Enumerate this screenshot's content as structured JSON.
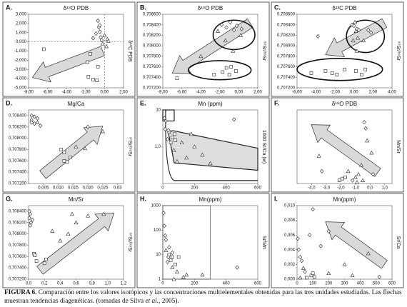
{
  "chart_data": [
    {
      "type": "scatter",
      "letter": "A.",
      "title": "δ¹⁸O PDB",
      "ylabel": "δ¹³C PDB",
      "xlim": [
        -8,
        2
      ],
      "ylim": [
        -5,
        3
      ],
      "xticks": [
        {
          "value": -8,
          "label": "-8,00"
        },
        {
          "value": -6,
          "label": "-6,00"
        },
        {
          "value": -4,
          "label": "-4,00"
        },
        {
          "value": -2,
          "label": "-2,00"
        },
        {
          "value": 0,
          "label": "0,00"
        },
        {
          "value": 2,
          "label": "2,00"
        }
      ],
      "yticks": [
        {
          "value": 3,
          "label": "3,000"
        },
        {
          "value": 2,
          "label": "2,000"
        },
        {
          "value": 1,
          "label": "1,000"
        },
        {
          "value": 0,
          "label": "0,000"
        },
        {
          "value": -1,
          "label": "-1,000"
        },
        {
          "value": -2,
          "label": "-2,000"
        },
        {
          "value": -3,
          "label": "-3,000"
        },
        {
          "value": -4,
          "label": "-4,000"
        },
        {
          "value": -5,
          "label": "-5,000"
        }
      ],
      "series": [
        {
          "marker": "square",
          "color": "#222222",
          "x": [
            -6.4,
            -1.8,
            -1.7,
            -1.2,
            -0.8,
            -0.7,
            -1.5
          ],
          "values": [
            -0.8,
            -2.2,
            -3.8,
            -4.1,
            -4.2,
            -2.7,
            -1.3
          ]
        },
        {
          "marker": "diamond",
          "color": "#222222",
          "x": [
            -0.6,
            -0.5,
            -1.2,
            -0.3,
            -0.5,
            -0.7,
            -0.9,
            -0.4
          ],
          "values": [
            1.6,
            1.1,
            0.4,
            0.2,
            1.8,
            2.3,
            0.9,
            0.5
          ]
        },
        {
          "marker": "triangle",
          "color": "#222222",
          "x": [
            0,
            0.3,
            0.2,
            -0.2,
            0.4
          ],
          "values": [
            0.7,
            0.3,
            -0.5,
            -0.2,
            0.1
          ]
        }
      ]
    },
    {
      "type": "scatter",
      "letter": "B.",
      "title": "δ¹⁸O PDB",
      "ylabel": "⁸⁷Sr/⁸⁶Sr",
      "xlim": [
        -8,
        2
      ],
      "ylim": [
        0.7072,
        0.7086
      ],
      "xticks": [
        {
          "value": -8,
          "label": "-8,00"
        },
        {
          "value": -6,
          "label": "-6,00"
        },
        {
          "value": -4,
          "label": "-4,00"
        },
        {
          "value": -2,
          "label": "-2,00"
        },
        {
          "value": 0,
          "label": "0,00"
        },
        {
          "value": 2,
          "label": "2,00"
        }
      ],
      "yticks": [
        {
          "value": 0.7086,
          "label": "0,708600"
        },
        {
          "value": 0.7084,
          "label": "0,708400"
        },
        {
          "value": 0.7082,
          "label": "0,708200"
        },
        {
          "value": 0.708,
          "label": "0,708000"
        },
        {
          "value": 0.7078,
          "label": "0,707800"
        },
        {
          "value": 0.7076,
          "label": "0,707600"
        },
        {
          "value": 0.7074,
          "label": "0,707400"
        },
        {
          "value": 0.7072,
          "label": "0,707200"
        }
      ],
      "series": [
        {
          "marker": "square",
          "color": "#222222",
          "x": [
            -6.5,
            -2.6,
            -1.7,
            -1.3,
            -0.8,
            -0.3,
            -1.0
          ],
          "values": [
            0.70738,
            0.70745,
            0.7075,
            0.70758,
            0.7076,
            0.70752,
            0.70745
          ]
        },
        {
          "marker": "diamond",
          "color": "#222222",
          "x": [
            -1.8,
            -1.3,
            -0.9,
            -0.5,
            -0.2,
            0.3
          ],
          "values": [
            0.7084,
            0.70835,
            0.70845,
            0.7083,
            0.70838,
            0.70832
          ]
        },
        {
          "marker": "triangle",
          "color": "#222222",
          "x": [
            -2.2,
            -1.4,
            -4.0,
            0.2,
            -0.6
          ],
          "values": [
            0.70828,
            0.7081,
            0.7078,
            0.7082,
            0.7079
          ]
        }
      ]
    },
    {
      "type": "scatter",
      "letter": "C.",
      "title": "δ¹³C PDB",
      "ylabel": "⁸⁷Sr/⁸⁶Sr",
      "xlim": [
        -6,
        4
      ],
      "ylim": [
        0.7072,
        0.7086
      ],
      "xticks": [
        {
          "value": -6,
          "label": "-6,00"
        },
        {
          "value": -4,
          "label": "-4,00"
        },
        {
          "value": -2,
          "label": "-2,00"
        },
        {
          "value": 0,
          "label": "0,00"
        },
        {
          "value": 2,
          "label": "2,00"
        },
        {
          "value": 4,
          "label": "4,00"
        }
      ],
      "yticks": [
        {
          "value": 0.7086,
          "label": "0,708600"
        },
        {
          "value": 0.7084,
          "label": "0,708400"
        },
        {
          "value": 0.7082,
          "label": "0,708200"
        },
        {
          "value": 0.708,
          "label": "0,708000"
        },
        {
          "value": 0.7078,
          "label": "0,707800"
        },
        {
          "value": 0.7076,
          "label": "0,707600"
        },
        {
          "value": 0.7074,
          "label": "0,707400"
        },
        {
          "value": 0.7072,
          "label": "0,707200"
        }
      ],
      "series": [
        {
          "marker": "square",
          "color": "#222222",
          "x": [
            -4.5,
            -3,
            -2.3,
            -1.8,
            -1,
            0.2,
            0.8,
            1.2
          ],
          "values": [
            0.70748,
            0.70752,
            0.70748,
            0.70745,
            0.70755,
            0.70752,
            0.70745,
            0.70755
          ]
        },
        {
          "marker": "diamond",
          "color": "#222222",
          "x": [
            -0.2,
            0,
            0.3,
            0.5,
            1.5,
            1.8,
            -3.8
          ],
          "values": [
            0.7084,
            0.70838,
            0.70832,
            0.7083,
            0.7083,
            0.70825,
            0.70818
          ]
        },
        {
          "marker": "triangle",
          "color": "#222222",
          "x": [
            0.1,
            0.2,
            0.4,
            -0.1,
            0.3,
            1.0
          ],
          "values": [
            0.70845,
            0.70828,
            0.70815,
            0.7081,
            0.7079,
            0.7081
          ]
        }
      ]
    },
    {
      "type": "scatter",
      "letter": "D.",
      "title": "Mg/Ca",
      "ylabel": "⁸⁷Sr/⁸⁶Sr",
      "xlim": [
        0,
        0.032
      ],
      "ylim": [
        0.7072,
        0.7085
      ],
      "xticks": [
        {
          "value": 0.005,
          "label": "0,005"
        },
        {
          "value": 0.01,
          "label": "0,010"
        },
        {
          "value": 0.015,
          "label": "0,015"
        },
        {
          "value": 0.02,
          "label": "0,020"
        },
        {
          "value": 0.025,
          "label": "0,025"
        },
        {
          "value": 0.03,
          "label": "0,03"
        }
      ],
      "yticks": [
        {
          "value": 0.7084,
          "label": "0,708400"
        },
        {
          "value": 0.7082,
          "label": "0,708200"
        },
        {
          "value": 0.708,
          "label": "0,708000"
        },
        {
          "value": 0.7078,
          "label": "0,707800"
        },
        {
          "value": 0.7076,
          "label": "0,707600"
        },
        {
          "value": 0.7074,
          "label": "0,707400"
        },
        {
          "value": 0.7072,
          "label": "0,707200"
        }
      ],
      "series": [
        {
          "marker": "diamond",
          "color": "#222222",
          "x": [
            0.001,
            0.002,
            0.001,
            0.003,
            0.002,
            0.004,
            0.001,
            0.02
          ],
          "values": [
            0.7084,
            0.70838,
            0.70832,
            0.70835,
            0.70826,
            0.70822,
            0.70828,
            0.7082
          ]
        },
        {
          "marker": "square",
          "color": "#222222",
          "x": [
            0.011,
            0.012,
            0.012,
            0.013,
            0.014
          ],
          "values": [
            0.7078,
            0.70775,
            0.7076,
            0.70758,
            0.70766
          ]
        },
        {
          "marker": "triangle",
          "color": "#222222",
          "x": [
            0.003,
            0.016,
            0.025,
            0.019
          ],
          "values": [
            0.70828,
            0.70785,
            0.70812,
            0.70782
          ]
        }
      ]
    },
    {
      "type": "scatter",
      "letter": "E.",
      "title": "Mn (ppm)",
      "ylabel": "1000 Sr/Ca (w)",
      "log_y": true,
      "xlim": [
        0,
        600
      ],
      "ylim": [
        0.1,
        10
      ],
      "xticks": [
        0,
        200,
        400,
        600
      ],
      "yticks": [
        10,
        {
          "value": 1,
          "label": "1,0"
        }
      ],
      "series": [
        {
          "marker": "square",
          "color": "#222222",
          "x": [
            40,
            60,
            75,
            50,
            80
          ],
          "values": [
            2.5,
            1.8,
            2.2,
            1.3,
            1.5
          ]
        },
        {
          "marker": "diamond",
          "color": "#222222",
          "x": [
            10,
            15,
            20,
            30,
            450,
            35
          ],
          "values": [
            6,
            3,
            5,
            1.6,
            5.5,
            2.8
          ]
        },
        {
          "marker": "triangle",
          "color": "#222222",
          "x": [
            70,
            150,
            200,
            250,
            300,
            120,
            180,
            90
          ],
          "values": [
            0.8,
            0.5,
            1.0,
            0.6,
            0.35,
            1.3,
            2.2,
            0.4
          ]
        }
      ]
    },
    {
      "type": "scatter",
      "letter": "F.",
      "title": "δ¹⁸O PDB",
      "ylabel": "Mn/Sr",
      "xlim": [
        -5,
        1.5
      ],
      "ylim": [
        0,
        1.2
      ],
      "xticks": [
        {
          "value": -4,
          "label": "-4,0"
        },
        {
          "value": -3,
          "label": "-3,0"
        },
        {
          "value": -2,
          "label": "-2,0"
        },
        {
          "value": -1,
          "label": "-1,0"
        },
        {
          "value": 0,
          "label": "0,0"
        },
        {
          "value": 1,
          "label": "1,0"
        }
      ],
      "yticks": [],
      "series": [
        {
          "marker": "triangle",
          "color": "#222222",
          "x": [
            -1.5,
            -1.0,
            -0.8,
            -0.5,
            -0.6,
            0.1,
            -0.2,
            -3.5,
            -0.9
          ],
          "values": [
            0.2,
            0.1,
            0.15,
            0.05,
            0.3,
            0.5,
            0.7,
            0.45,
            0.02
          ]
        },
        {
          "marker": "diamond",
          "color": "#222222",
          "x": [
            -3.3,
            -0.3,
            0.2,
            -1.2,
            -0.4
          ],
          "values": [
            0.2,
            0.9,
            0.15,
            0.05,
            1.0
          ]
        },
        {
          "marker": "square",
          "color": "#222222",
          "x": [
            -1.9,
            -1.7,
            -2.1
          ],
          "values": [
            0.08,
            0.1,
            0.05
          ]
        }
      ]
    },
    {
      "type": "scatter",
      "letter": "G.",
      "title": "Mn/Sr",
      "ylabel": "⁸⁷Sr/⁸⁶Sr",
      "xlim": [
        0,
        1.2
      ],
      "ylim": [
        0.7072,
        0.7085
      ],
      "xticks": [
        {
          "value": 0,
          "label": "0,0"
        },
        {
          "value": 0.2,
          "label": "0,2"
        },
        {
          "value": 0.4,
          "label": "0,4"
        },
        {
          "value": 0.6,
          "label": "0,6"
        },
        {
          "value": 0.8,
          "label": "0,8"
        },
        {
          "value": 1,
          "label": "1,0"
        },
        {
          "value": 1.2,
          "label": "1,2"
        }
      ],
      "yticks": [
        {
          "value": 0.7084,
          "label": "0,708400"
        },
        {
          "value": 0.7082,
          "label": "0,708200"
        },
        {
          "value": 0.708,
          "label": "0,708000"
        },
        {
          "value": 0.7078,
          "label": "0,707800"
        },
        {
          "value": 0.7076,
          "label": "0,707600"
        },
        {
          "value": 0.7074,
          "label": "0,707400"
        },
        {
          "value": 0.7072,
          "label": "0,707200"
        }
      ],
      "series": [
        {
          "marker": "diamond",
          "color": "#222222",
          "x": [
            0.01,
            0.02,
            0.01,
            0.03,
            0.02,
            0.05
          ],
          "values": [
            0.7084,
            0.70835,
            0.70828,
            0.7082,
            0.70815,
            0.70825
          ]
        },
        {
          "marker": "square",
          "color": "#222222",
          "x": [
            0.07,
            0.08,
            0.1,
            0.2,
            0.22
          ],
          "values": [
            0.70765,
            0.70762,
            0.70752,
            0.70748,
            0.70755
          ]
        },
        {
          "marker": "triangle",
          "color": "#222222",
          "x": [
            0.4,
            0.55,
            0.6,
            0.75,
            0.95,
            0.5,
            0.3
          ],
          "values": [
            0.70788,
            0.70835,
            0.7082,
            0.70832,
            0.70835,
            0.708,
            0.70805
          ]
        }
      ]
    },
    {
      "type": "scatter",
      "letter": "H.",
      "title": "Mn(ppm)",
      "ylabel": "Sr/Mn",
      "log_y": true,
      "xlim": [
        0,
        600
      ],
      "ylim": [
        1,
        1000
      ],
      "xticks": [
        0,
        200,
        400,
        600
      ],
      "yticks": [
        1,
        10,
        100,
        1000
      ],
      "series": [
        {
          "marker": "diamond",
          "color": "#222222",
          "x": [
            5,
            10,
            15,
            20,
            40,
            35,
            30,
            470,
            60
          ],
          "values": [
            500,
            150,
            60,
            40,
            20,
            8,
            5,
            3,
            12
          ]
        },
        {
          "marker": "square",
          "color": "#222222",
          "x": [
            40,
            50,
            60,
            100,
            80
          ],
          "values": [
            10,
            6,
            8,
            8,
            4
          ]
        },
        {
          "marker": "triangle",
          "color": "#222222",
          "x": [
            20,
            60,
            90,
            150,
            250,
            130,
            70
          ],
          "values": [
            15,
            3,
            2,
            1.5,
            1.5,
            1.2,
            1
          ]
        }
      ]
    },
    {
      "type": "scatter",
      "letter": "I.",
      "title": "Mn(ppm)",
      "ylabel": "Sr/Ca",
      "xlim": [
        0,
        600
      ],
      "ylim": [
        0,
        0.01
      ],
      "xticks": [
        0,
        100,
        200,
        300,
        400,
        500,
        600
      ],
      "yticks": [
        {
          "value": 0.01,
          "label": "0,010"
        },
        {
          "value": 0.008,
          "label": "0,008"
        },
        {
          "value": 0.006,
          "label": "0,006"
        },
        {
          "value": 0.004,
          "label": "0,004"
        },
        {
          "value": 0.002,
          "label": "0,002"
        },
        {
          "value": 0,
          "label": "0,000"
        }
      ],
      "series": [
        {
          "marker": "diamond",
          "color": "#222222",
          "x": [
            5,
            10,
            20,
            30,
            50,
            100,
            200,
            150,
            80,
            520
          ],
          "values": [
            0.0055,
            0.004,
            0.003,
            0.0025,
            0.001,
            0.0095,
            0.0065,
            0.0045,
            0.006,
            0.0003
          ]
        },
        {
          "marker": "square",
          "color": "#222222",
          "x": [
            90,
            100,
            110,
            60
          ],
          "values": [
            0.0005,
            0.0008,
            0.0003,
            0.0002
          ]
        },
        {
          "marker": "triangle",
          "color": "#222222",
          "x": [
            40,
            300,
            450,
            200,
            350,
            20
          ],
          "values": [
            0.0015,
            0.002,
            0.0035,
            0.0008,
            0.0005,
            0.0002
          ]
        }
      ]
    }
  ],
  "caption": {
    "label": "FIGURA 6.",
    "text": "Comparación entre los valores isotópicos y las concentraciones multielementales obtenidas para las tres unidades estudiadas. Las flechas muestran tendencias diagenéticas. (tomadas de Silva",
    "italic": "et al.,",
    "end": "2005)."
  }
}
